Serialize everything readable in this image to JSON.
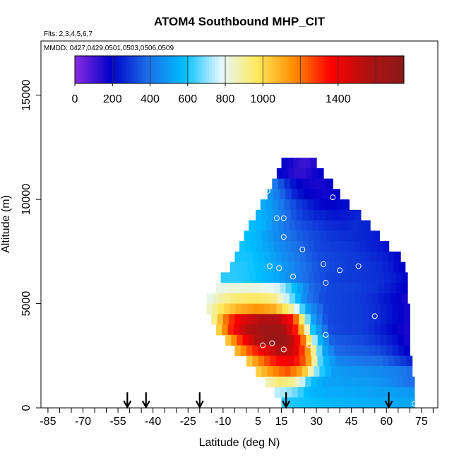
{
  "chart_data": {
    "type": "heatmap",
    "title": "ATOM4 Southbound MHP_CIT",
    "flights_label": "Flts: 2,3,4,5,6,7",
    "dates_label": "MMDD: 0427,0429,0501,0503,0506,0509",
    "xlabel": "Latitude (deg N)",
    "ylabel": "Altitude (m)",
    "xlim": [
      -88,
      82
    ],
    "ylim": [
      0,
      17600
    ],
    "x_ticks": [
      {
        "value": -85,
        "label": "-85"
      },
      {
        "value": -70,
        "label": "-70"
      },
      {
        "value": -55,
        "label": "-55"
      },
      {
        "value": -40,
        "label": "-40"
      },
      {
        "value": -25,
        "label": "-25"
      },
      {
        "value": -10,
        "label": "-10"
      },
      {
        "value": 5,
        "label": "5"
      },
      {
        "value": 15,
        "label": "15"
      },
      {
        "value": 30,
        "label": "30"
      },
      {
        "value": 45,
        "label": "45"
      },
      {
        "value": 60,
        "label": "60"
      },
      {
        "value": 75,
        "label": "75"
      }
    ],
    "y_ticks": [
      {
        "value": 0,
        "label": "0"
      },
      {
        "value": 5000,
        "label": "5000"
      },
      {
        "value": 10000,
        "label": "10000"
      },
      {
        "value": 15000,
        "label": "15000"
      }
    ],
    "colorbar": {
      "min": 0,
      "max": 1750,
      "ticks": [
        {
          "value": 0,
          "label": "0"
        },
        {
          "value": 200,
          "label": "200"
        },
        {
          "value": 400,
          "label": "400"
        },
        {
          "value": 600,
          "label": "600"
        },
        {
          "value": 800,
          "label": "800"
        },
        {
          "value": 1000,
          "label": "1000"
        },
        {
          "value": 1400,
          "label": "1400"
        }
      ],
      "colors": [
        "#8a2be2",
        "#0000c8",
        "#1c6fe8",
        "#00bfff",
        "#e6f8ff",
        "#ffe95a",
        "#ff8c00",
        "#ff0000",
        "#b01010",
        "#8b1a1a"
      ]
    },
    "arrows_lat": [
      -51,
      -43,
      -20,
      17,
      61
    ],
    "profile_rows": [
      {
        "alt": 11500,
        "lat_min": 15,
        "lat_max": 30,
        "values": [
          200,
          150,
          100,
          160
        ]
      },
      {
        "alt": 11000,
        "lat_min": 13,
        "lat_max": 33,
        "values": [
          220,
          160,
          120,
          160,
          200
        ]
      },
      {
        "alt": 10500,
        "lat_min": 11,
        "lat_max": 37,
        "values": [
          450,
          300,
          200,
          170,
          160,
          190
        ]
      },
      {
        "alt": 10000,
        "lat_min": 9,
        "lat_max": 40,
        "values": [
          500,
          400,
          280,
          200,
          180,
          170,
          200
        ]
      },
      {
        "alt": 9500,
        "lat_min": 6,
        "lat_max": 44,
        "values": [
          550,
          480,
          380,
          300,
          240,
          200,
          200,
          220
        ]
      },
      {
        "alt": 9000,
        "lat_min": 4,
        "lat_max": 49,
        "values": [
          560,
          520,
          420,
          330,
          280,
          250,
          230,
          240,
          260
        ]
      },
      {
        "alt": 8500,
        "lat_min": 1,
        "lat_max": 53,
        "values": [
          580,
          560,
          460,
          380,
          330,
          300,
          270,
          260,
          270,
          250
        ]
      },
      {
        "alt": 8000,
        "lat_min": -1,
        "lat_max": 57,
        "values": [
          590,
          560,
          480,
          420,
          360,
          330,
          300,
          280,
          270,
          260,
          240
        ]
      },
      {
        "alt": 7500,
        "lat_min": -3,
        "lat_max": 61,
        "values": [
          600,
          580,
          520,
          460,
          400,
          350,
          310,
          300,
          290,
          270,
          250,
          220
        ]
      },
      {
        "alt": 7000,
        "lat_min": -5,
        "lat_max": 66,
        "values": [
          600,
          600,
          560,
          500,
          440,
          380,
          330,
          310,
          300,
          290,
          270,
          240,
          200
        ]
      },
      {
        "alt": 6500,
        "lat_min": -7,
        "lat_max": 68,
        "values": [
          620,
          610,
          580,
          530,
          470,
          400,
          340,
          320,
          300,
          290,
          280,
          240,
          180
        ]
      },
      {
        "alt": 6000,
        "lat_min": -11,
        "lat_max": 69,
        "values": [
          620,
          620,
          600,
          560,
          500,
          420,
          350,
          310,
          300,
          290,
          280,
          250,
          200
        ]
      },
      {
        "alt": 5500,
        "lat_min": -13,
        "lat_max": 69,
        "values": [
          800,
          820,
          820,
          800,
          760,
          560,
          380,
          320,
          310,
          300,
          280,
          240,
          180
        ]
      },
      {
        "alt": 5000,
        "lat_min": -17,
        "lat_max": 69,
        "values": [
          780,
          900,
          950,
          960,
          930,
          700,
          420,
          320,
          310,
          300,
          270,
          220,
          150
        ]
      },
      {
        "alt": 4500,
        "lat_min": -17,
        "lat_max": 70,
        "values": [
          820,
          1000,
          1100,
          1150,
          1100,
          900,
          500,
          330,
          310,
          300,
          270,
          220,
          150
        ]
      },
      {
        "alt": 4000,
        "lat_min": -15,
        "lat_max": 70,
        "values": [
          850,
          1250,
          1450,
          1550,
          1550,
          1300,
          550,
          320,
          310,
          300,
          270,
          220,
          150
        ]
      },
      {
        "alt": 3500,
        "lat_min": -13,
        "lat_max": 70,
        "values": [
          950,
          1350,
          1550,
          1650,
          1650,
          1300,
          600,
          330,
          310,
          300,
          260,
          200,
          150
        ]
      },
      {
        "alt": 3000,
        "lat_min": -9,
        "lat_max": 70,
        "values": [
          1000,
          1300,
          1550,
          1700,
          1650,
          1250,
          600,
          350,
          340,
          320,
          280,
          230,
          150
        ]
      },
      {
        "alt": 2500,
        "lat_min": -5,
        "lat_max": 70,
        "values": [
          1050,
          1250,
          1400,
          1550,
          1500,
          1150,
          550,
          380,
          360,
          350,
          320,
          260,
          180
        ]
      },
      {
        "alt": 2000,
        "lat_min": 0,
        "lat_max": 71,
        "values": [
          1000,
          1200,
          1350,
          1400,
          1200,
          600,
          450,
          420,
          400,
          380,
          320,
          250
        ]
      },
      {
        "alt": 1500,
        "lat_min": 4,
        "lat_max": 71,
        "values": [
          1000,
          1150,
          1250,
          1100,
          650,
          500,
          480,
          470,
          450,
          430,
          380
        ]
      },
      {
        "alt": 1000,
        "lat_min": 8,
        "lat_max": 72,
        "values": [
          850,
          950,
          900,
          600,
          520,
          510,
          500,
          490,
          470,
          430,
          380
        ]
      },
      {
        "alt": 500,
        "lat_min": 12,
        "lat_max": 72,
        "values": [
          750,
          700,
          560,
          540,
          530,
          520,
          510,
          500,
          480
        ]
      },
      {
        "alt": 0,
        "lat_min": 15,
        "lat_max": 72,
        "values": [
          620,
          600,
          580,
          560,
          550,
          540,
          530,
          520
        ]
      }
    ],
    "measurement_points": [
      {
        "lat": 9,
        "alt": 10400
      },
      {
        "lat": 37,
        "alt": 10100
      },
      {
        "lat": 47,
        "alt": 9800
      },
      {
        "lat": 13,
        "alt": 9100
      },
      {
        "lat": 16,
        "alt": 9100
      },
      {
        "lat": 16,
        "alt": 8200
      },
      {
        "lat": 24,
        "alt": 7600
      },
      {
        "lat": 10,
        "alt": 6800
      },
      {
        "lat": 14,
        "alt": 6700
      },
      {
        "lat": 33,
        "alt": 6900
      },
      {
        "lat": 40,
        "alt": 6600
      },
      {
        "lat": 48,
        "alt": 6800
      },
      {
        "lat": 70,
        "alt": 7300
      },
      {
        "lat": 20,
        "alt": 6300
      },
      {
        "lat": 34,
        "alt": 6000
      },
      {
        "lat": 55,
        "alt": 4400
      },
      {
        "lat": 34,
        "alt": 3500
      },
      {
        "lat": 11,
        "alt": 3100
      },
      {
        "lat": 7,
        "alt": 3000
      },
      {
        "lat": 27,
        "alt": 3000
      },
      {
        "lat": 16,
        "alt": 2800
      },
      {
        "lat": 72,
        "alt": 200
      }
    ]
  }
}
